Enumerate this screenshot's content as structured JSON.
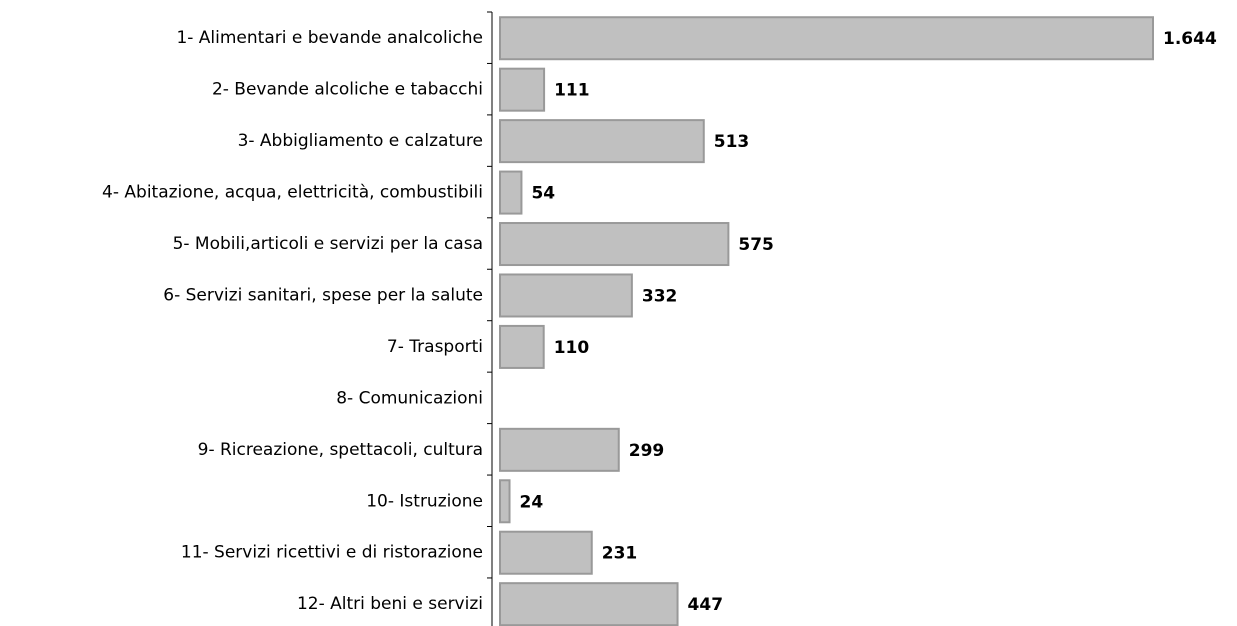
{
  "chart_data": {
    "type": "hbar",
    "categories": [
      "1- Alimentari e bevande analcoliche",
      "2- Bevande alcoliche e tabacchi",
      "3- Abbigliamento e calzature",
      "4- Abitazione, acqua, elettricità, combustibili",
      "5- Mobili,articoli e servizi per la casa",
      "6- Servizi sanitari, spese per la salute",
      "7- Trasporti",
      "8- Comunicazioni",
      "9- Ricreazione, spettacoli, cultura",
      "10-  Istruzione",
      "11- Servizi ricettivi e di ristorazione",
      "12- Altri beni e servizi"
    ],
    "values": [
      1644,
      111,
      513,
      54,
      575,
      332,
      110,
      null,
      299,
      24,
      231,
      447
    ],
    "value_labels": [
      "1.644",
      "111",
      "513",
      "54",
      "575",
      "332",
      "110",
      null,
      "299",
      "24",
      "231",
      "447"
    ],
    "color": "#c0c0c0"
  }
}
